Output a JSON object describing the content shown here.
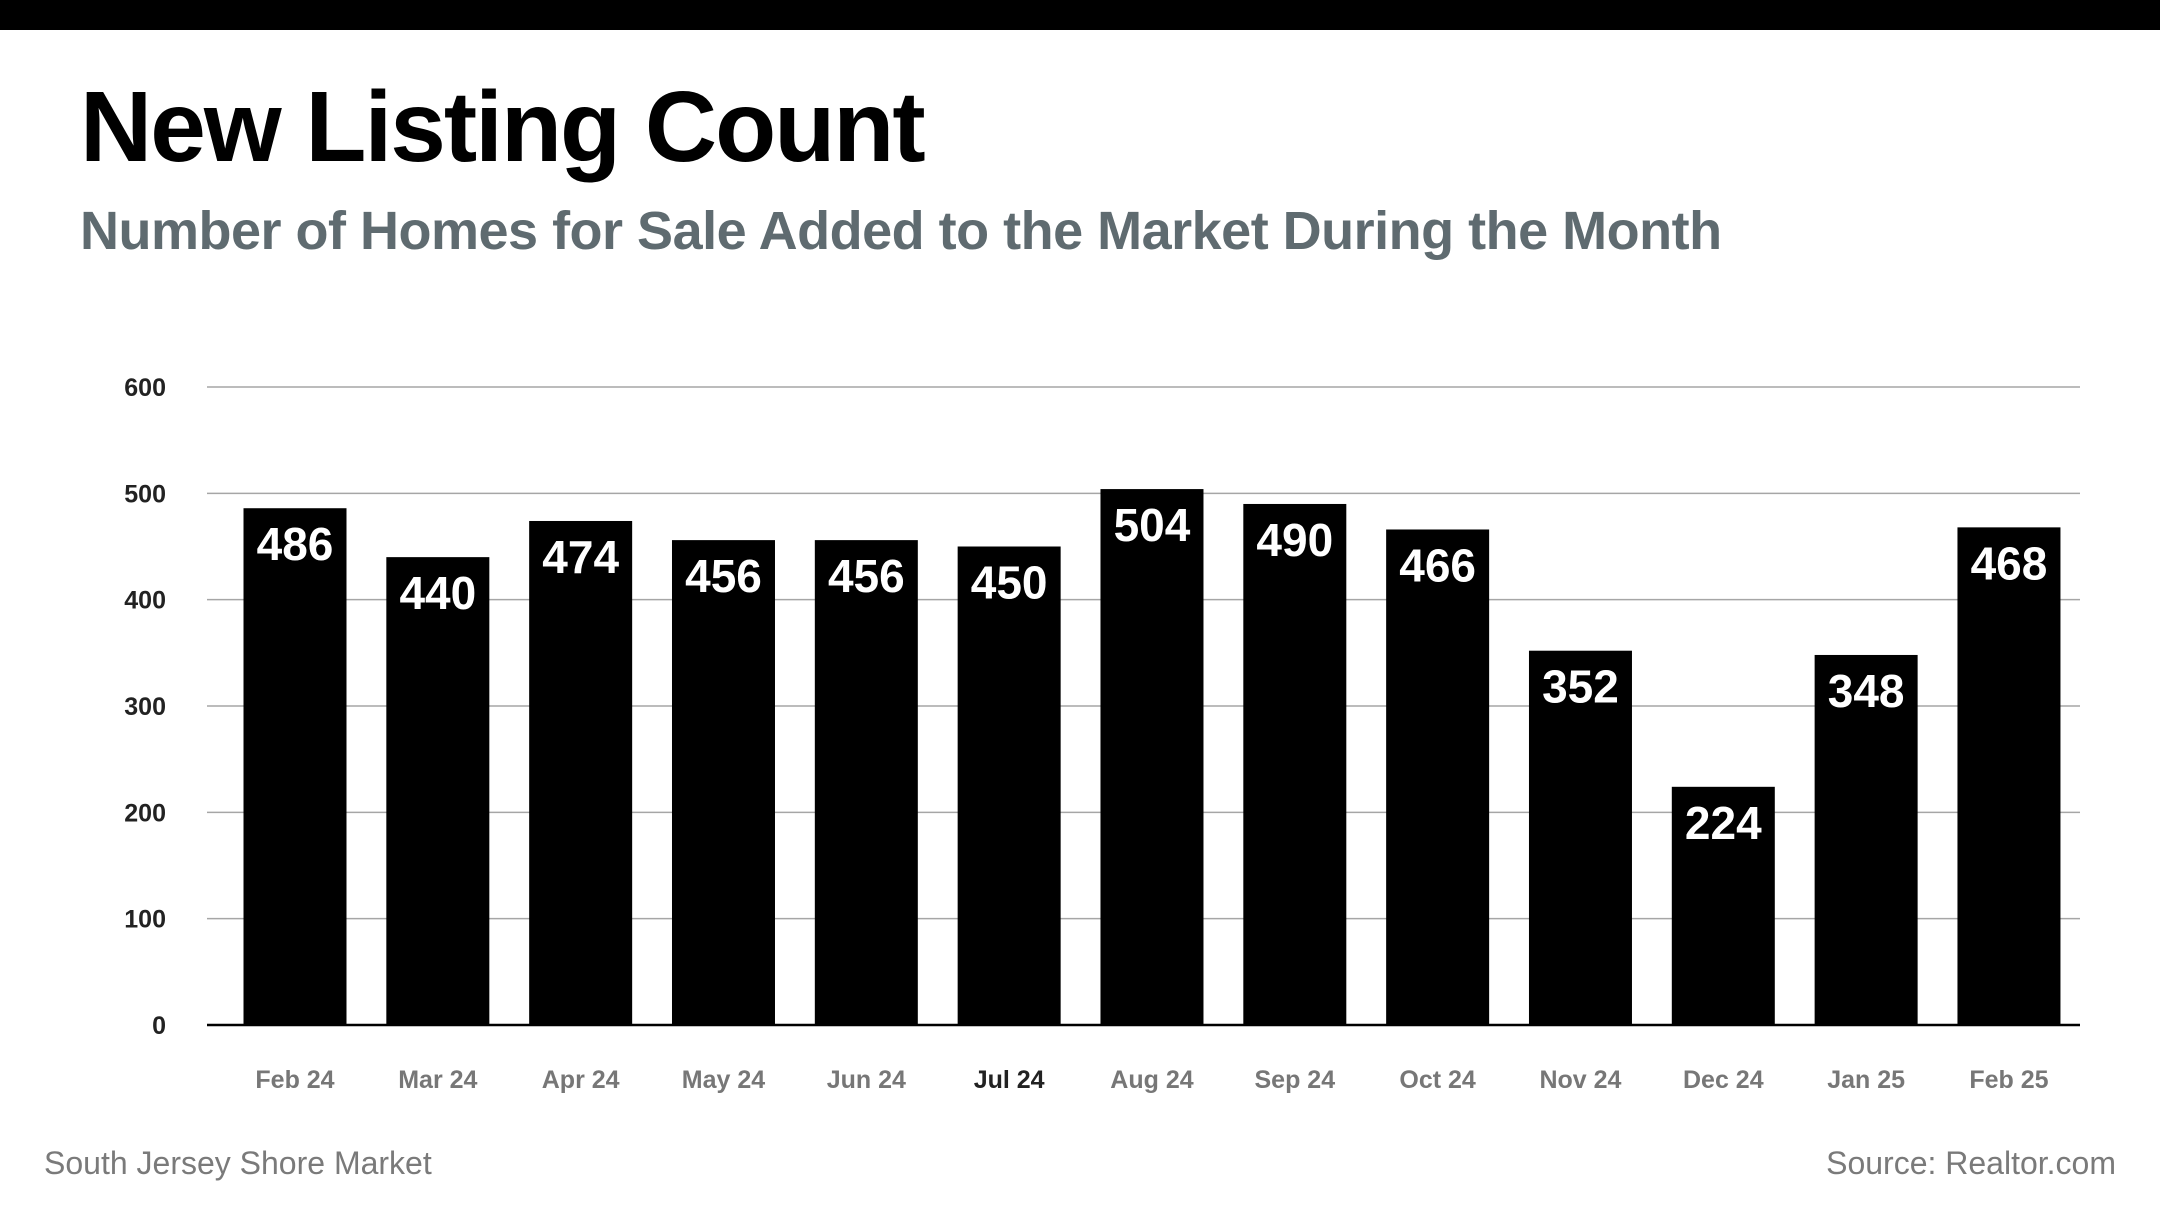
{
  "footer": {
    "left": "South Jersey Shore Market",
    "right": "Source: Realtor.com"
  },
  "colors": {
    "bar": "#000000",
    "grid": "#a6a6a6",
    "subtitle": "#5f6b70",
    "footer": "#7a7a7a",
    "tick": "#777777"
  },
  "chart_data": {
    "type": "bar",
    "title": "New Listing Count",
    "subtitle": "Number of Homes for Sale Added to the Market During the Month",
    "categories": [
      "Feb 24",
      "Mar 24",
      "Apr 24",
      "May 24",
      "Jun 24",
      "Jul 24",
      "Aug 24",
      "Sep 24",
      "Oct 24",
      "Nov 24",
      "Dec 24",
      "Jan 25",
      "Feb 25"
    ],
    "values": [
      486,
      440,
      474,
      456,
      456,
      450,
      504,
      490,
      466,
      352,
      224,
      348,
      468
    ],
    "value_labels": [
      "486",
      "440",
      "474",
      "456",
      "456",
      "450",
      "504",
      "490",
      "466",
      "352",
      "224",
      "348",
      "468"
    ],
    "yticks": [
      "0",
      "100",
      "200",
      "300",
      "400",
      "500",
      "600"
    ],
    "ylim": [
      0,
      600
    ],
    "grid": true,
    "xlabel": "",
    "ylabel": ""
  }
}
